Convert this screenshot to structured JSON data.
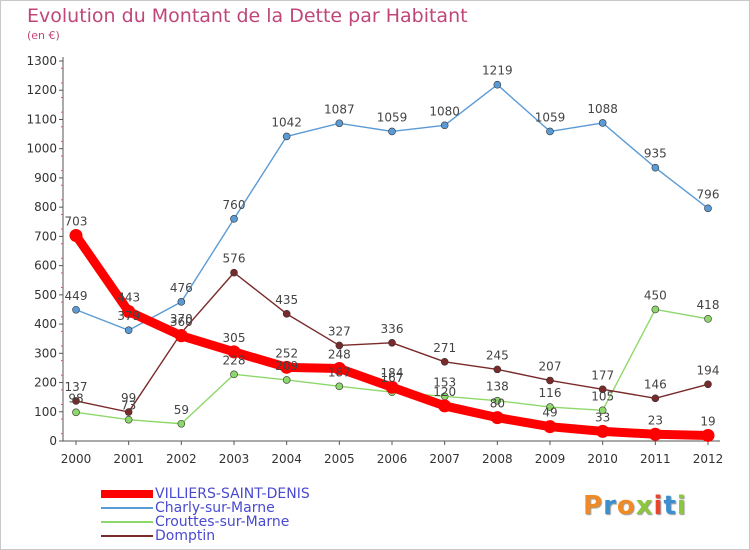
{
  "title": "Evolution du Montant de la Dette par Habitant",
  "unit": "(en €)",
  "logo": "Proxiti",
  "chart_data": {
    "type": "line",
    "x": [
      "2000",
      "2001",
      "2002",
      "2003",
      "2004",
      "2005",
      "2006",
      "2007",
      "2008",
      "2009",
      "2010",
      "2011",
      "2012"
    ],
    "ylim": [
      0,
      1300
    ],
    "yticks": [
      0,
      100,
      200,
      300,
      400,
      500,
      600,
      700,
      800,
      900,
      1000,
      1100,
      1200,
      1300
    ],
    "grid": false,
    "legend_position": "bottom",
    "series": [
      {
        "name": "Charly-sur-Marne",
        "color": "#5b9bd5",
        "values": [
          449,
          379,
          476,
          760,
          1042,
          1087,
          1059,
          1080,
          1219,
          1059,
          1088,
          935,
          796
        ],
        "labels": [
          "449",
          "379",
          "476",
          "760",
          "1042",
          "1087",
          "1059",
          "1080",
          "1219",
          "1059",
          "1088",
          "935",
          "796"
        ]
      },
      {
        "name": "Crouttes-sur-Marne",
        "color": "#8ed86b",
        "values": [
          98,
          73,
          59,
          228,
          209,
          187,
          167,
          153,
          138,
          116,
          105,
          450,
          418
        ],
        "labels": [
          "98",
          "73",
          "59",
          "228",
          "209",
          "187",
          "167",
          "153",
          "138",
          "116",
          "105",
          "450",
          "418"
        ]
      },
      {
        "name": "Domptin",
        "color": "#7a2a2a",
        "values": [
          137,
          99,
          370,
          576,
          435,
          327,
          336,
          271,
          245,
          207,
          177,
          146,
          194
        ],
        "labels": [
          "137",
          "99",
          "370",
          "576",
          "435",
          "327",
          "336",
          "271",
          "245",
          "207",
          "177",
          "146",
          "194"
        ]
      },
      {
        "name": "VILLIERS-SAINT-DENIS",
        "color": "#ff0000",
        "bold": true,
        "values": [
          703,
          443,
          360,
          305,
          252,
          248,
          184,
          120,
          80,
          49,
          33,
          23,
          19
        ],
        "labels": [
          "703",
          "443",
          "360",
          "305",
          "252",
          "248",
          "184",
          "120",
          "80",
          "49",
          "33",
          "23",
          "19"
        ]
      }
    ]
  },
  "legend": [
    {
      "name": "VILLIERS-SAINT-DENIS",
      "color": "#ff0000",
      "bold": true
    },
    {
      "name": "Charly-sur-Marne",
      "color": "#5b9bd5"
    },
    {
      "name": "Crouttes-sur-Marne",
      "color": "#8ed86b"
    },
    {
      "name": "Domptin",
      "color": "#7a2a2a"
    }
  ],
  "logo_colors": [
    "#f08a24",
    "#3a8fd0",
    "#f08a24",
    "#8cc63f",
    "#e8452c",
    "#3a8fd0",
    "#8cc63f"
  ]
}
